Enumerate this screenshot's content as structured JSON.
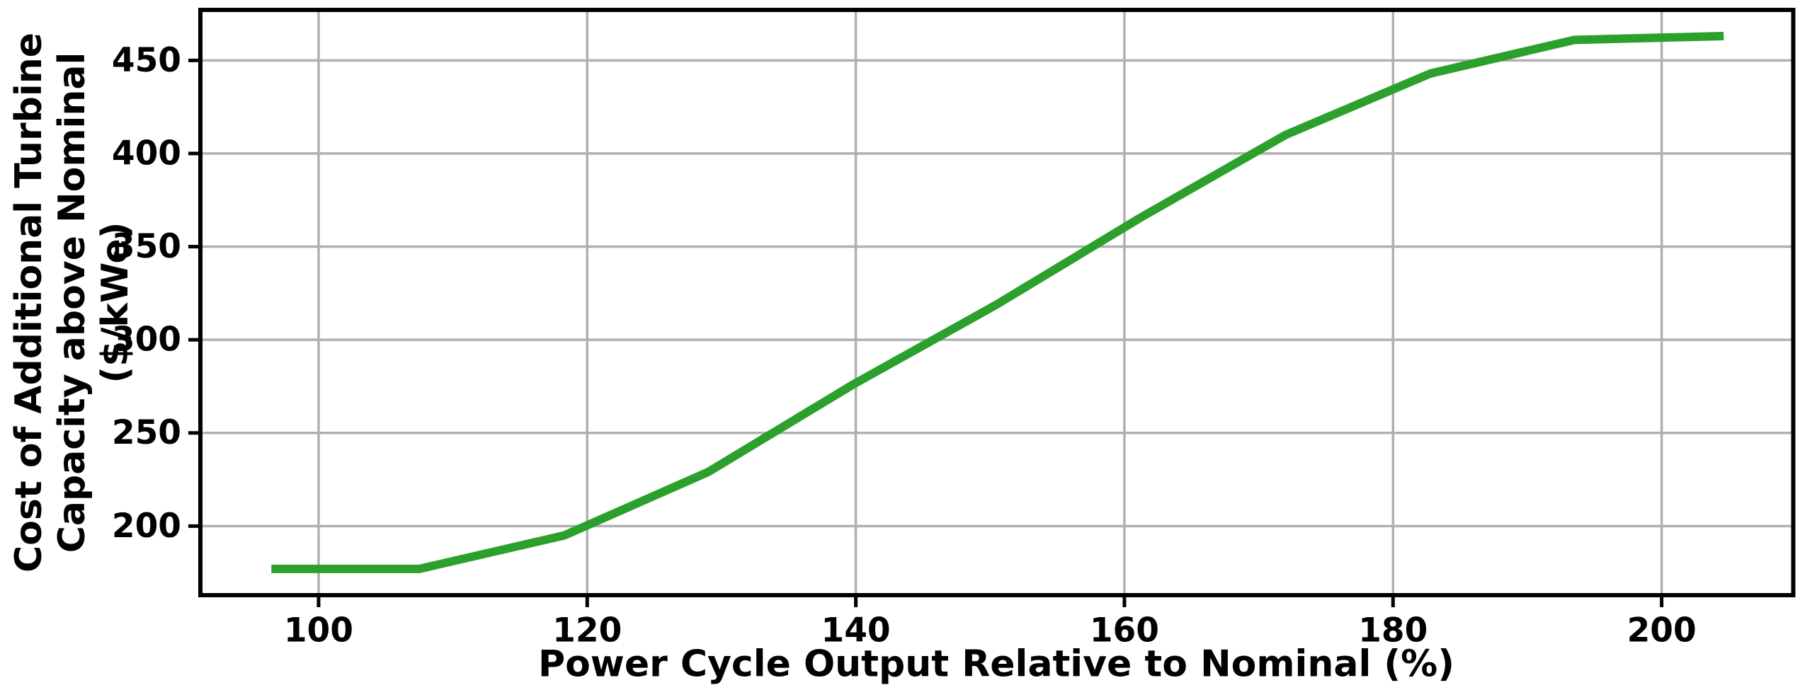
{
  "figure": {
    "background": "#ffffff"
  },
  "chart_data": {
    "type": "line",
    "title": "",
    "xlabel": "Power Cycle Output Relative to Nominal (%)",
    "ylabel": "Cost of Additional Turbine Capacity above Nominal ($/kWe)",
    "ylabel_lines": [
      "Cost of Additional Turbine",
      "Capacity above Nominal",
      "($/kWe)"
    ],
    "x": [
      96.8,
      107.5,
      118.3,
      129.0,
      139.8,
      150.5,
      161.3,
      172.0,
      182.8,
      193.5,
      204.3
    ],
    "y": [
      177,
      177,
      195,
      229,
      276,
      319,
      366,
      410,
      443,
      461,
      463
    ],
    "xlim": [
      91.2,
      209.8
    ],
    "ylim": [
      162.9,
      477.1
    ],
    "xticks": [
      100,
      120,
      140,
      160,
      180,
      200
    ],
    "yticks": [
      200,
      250,
      300,
      350,
      400,
      450
    ],
    "grid": true,
    "legend": "none",
    "line_color": "#2ca02c",
    "grid_color": "#b0b0b0",
    "spine_color": "#000000",
    "tick_color": "#000000"
  }
}
